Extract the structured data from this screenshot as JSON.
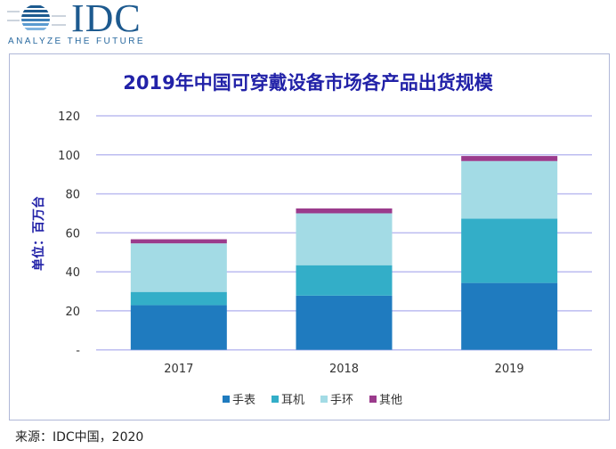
{
  "logo": {
    "brand": "IDC",
    "tagline": "ANALYZE THE FUTURE"
  },
  "footer": "来源：IDC中国，2020",
  "chart_data": {
    "type": "bar",
    "stacked": true,
    "title": "2019年中国可穿戴设备市场各产品出货规模",
    "ylabel": "单位：百万台",
    "xlabel": "",
    "categories": [
      "2017",
      "2018",
      "2019"
    ],
    "ylim": [
      0,
      120
    ],
    "yticks": [
      0,
      20,
      40,
      60,
      80,
      100,
      120
    ],
    "ytick_labels": [
      "-",
      "20",
      "40",
      "60",
      "80",
      "100",
      "120"
    ],
    "grid": true,
    "legend": "bottom",
    "series": [
      {
        "name": "手表",
        "color": "#1f7bbf",
        "values": [
          22.9,
          27.8,
          34.3
        ]
      },
      {
        "name": "耳机",
        "color": "#33aec8",
        "values": [
          6.8,
          15.6,
          33.0
        ]
      },
      {
        "name": "手环",
        "color": "#a3dbe5",
        "values": [
          24.9,
          26.6,
          29.5
        ]
      },
      {
        "name": "其他",
        "color": "#9b3b8c",
        "values": [
          2.1,
          2.5,
          2.6
        ]
      }
    ]
  }
}
